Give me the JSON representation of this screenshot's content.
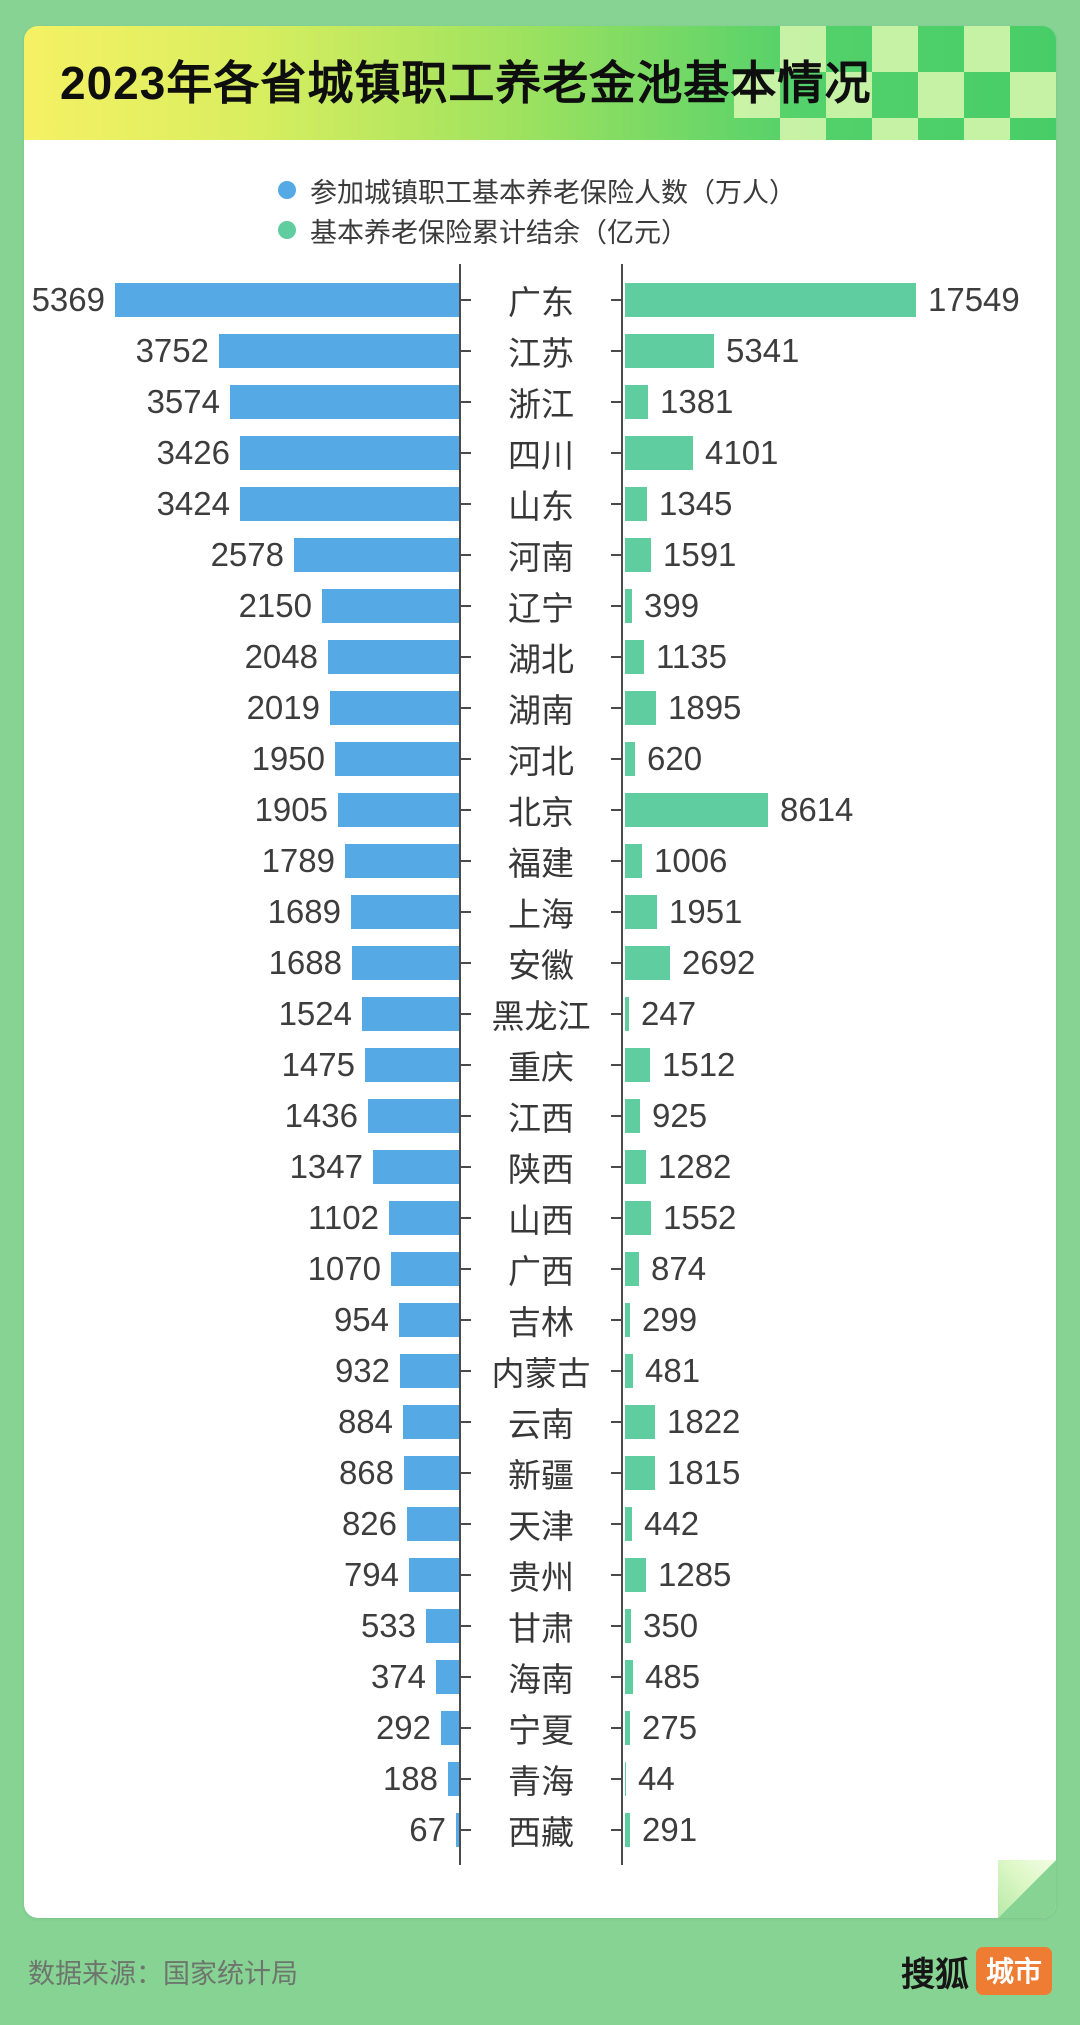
{
  "page": {
    "background_color": "#86d394",
    "title": "2023年各省城镇职工养老金池基本情况",
    "footer": {
      "source": "数据来源：国家统计局",
      "logo_text": "搜狐",
      "logo_badge": "城市",
      "logo_badge_color": "#ee7c33"
    }
  },
  "legend": {
    "items": [
      {
        "label": "参加城镇职工基本养老保险人数（万人）",
        "color": "#55a9e4"
      },
      {
        "label": "基本养老保险累计结余（亿元）",
        "color": "#5fcda0"
      }
    ]
  },
  "chart_data": {
    "type": "bar",
    "layout": "diverging-horizontal",
    "title": "2023年各省城镇职工养老金池基本情况",
    "series": [
      {
        "name": "参加城镇职工基本养老保险人数（万人）",
        "unit": "万人",
        "side": "left",
        "color": "#55a9e4"
      },
      {
        "name": "基本养老保险累计结余（亿元）",
        "unit": "亿元",
        "side": "right",
        "color": "#5fcda0"
      }
    ],
    "rows": [
      {
        "province": "广东",
        "participants": 5369,
        "balance": 17549
      },
      {
        "province": "江苏",
        "participants": 3752,
        "balance": 5341
      },
      {
        "province": "浙江",
        "participants": 3574,
        "balance": 1381
      },
      {
        "province": "四川",
        "participants": 3426,
        "balance": 4101
      },
      {
        "province": "山东",
        "participants": 3424,
        "balance": 1345
      },
      {
        "province": "河南",
        "participants": 2578,
        "balance": 1591
      },
      {
        "province": "辽宁",
        "participants": 2150,
        "balance": 399
      },
      {
        "province": "湖北",
        "participants": 2048,
        "balance": 1135
      },
      {
        "province": "湖南",
        "participants": 2019,
        "balance": 1895
      },
      {
        "province": "河北",
        "participants": 1950,
        "balance": 620
      },
      {
        "province": "北京",
        "participants": 1905,
        "balance": 8614
      },
      {
        "province": "福建",
        "participants": 1789,
        "balance": 1006
      },
      {
        "province": "上海",
        "participants": 1689,
        "balance": 1951
      },
      {
        "province": "安徽",
        "participants": 1688,
        "balance": 2692
      },
      {
        "province": "黑龙江",
        "participants": 1524,
        "balance": 247
      },
      {
        "province": "重庆",
        "participants": 1475,
        "balance": 1512
      },
      {
        "province": "江西",
        "participants": 1436,
        "balance": 925
      },
      {
        "province": "陕西",
        "participants": 1347,
        "balance": 1282
      },
      {
        "province": "山西",
        "participants": 1102,
        "balance": 1552
      },
      {
        "province": "广西",
        "participants": 1070,
        "balance": 874
      },
      {
        "province": "吉林",
        "participants": 954,
        "balance": 299
      },
      {
        "province": "内蒙古",
        "participants": 932,
        "balance": 481
      },
      {
        "province": "云南",
        "participants": 884,
        "balance": 1822
      },
      {
        "province": "新疆",
        "participants": 868,
        "balance": 1815
      },
      {
        "province": "天津",
        "participants": 826,
        "balance": 442
      },
      {
        "province": "贵州",
        "participants": 794,
        "balance": 1285
      },
      {
        "province": "甘肃",
        "participants": 533,
        "balance": 350
      },
      {
        "province": "海南",
        "participants": 374,
        "balance": 485
      },
      {
        "province": "宁夏",
        "participants": 292,
        "balance": 275
      },
      {
        "province": "青海",
        "participants": 188,
        "balance": 44
      },
      {
        "province": "西藏",
        "participants": 67,
        "balance": 291
      }
    ],
    "axes": {
      "left_max": 5369,
      "right_max": 17549,
      "grid": false,
      "tick_marks": "per-row"
    }
  }
}
